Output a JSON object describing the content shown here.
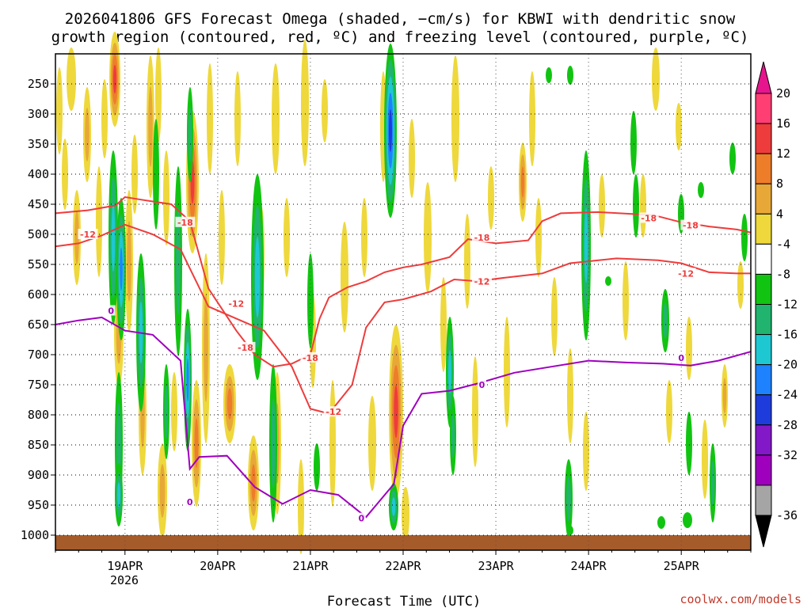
{
  "chart_data": {
    "type": "heatmap",
    "title_line1": "2026041806 GFS Forecast Omega (shaded, −cm/s) for KBWI with dendritic snow",
    "title_line2": "growth region (contoured, red, ºC) and freezing level (contoured, purple, ºC)",
    "xlabel": "Forecast Time (UTC)",
    "ylabel": "Pressure (hPa)",
    "credit": "coolwx.com/models",
    "x_ticks": [
      "19APR",
      "20APR",
      "21APR",
      "22APR",
      "23APR",
      "24APR",
      "25APR"
    ],
    "x_sub_label": "2026",
    "x_range_days": [
      18.25,
      25.75
    ],
    "y_ticks": [
      250,
      300,
      350,
      400,
      450,
      500,
      550,
      600,
      650,
      700,
      750,
      800,
      850,
      900,
      950,
      1000
    ],
    "y_range": [
      200,
      1000
    ],
    "colorbar": {
      "labels": [
        "20",
        "16",
        "12",
        "8",
        "4",
        "-4",
        "-8",
        "-12",
        "-16",
        "-20",
        "-24",
        "-28",
        "-32",
        "-36"
      ],
      "bins": [
        {
          "color": "#ff3e74"
        },
        {
          "color": "#ee3c3c"
        },
        {
          "color": "#ee7d2a"
        },
        {
          "color": "#e8a838"
        },
        {
          "color": "#eed83c"
        },
        {
          "color": "#ffffff"
        },
        {
          "color": "#12c412"
        },
        {
          "color": "#20b46e"
        },
        {
          "color": "#1ec8d2"
        },
        {
          "color": "#1e82ff"
        },
        {
          "color": "#1e3cdc"
        },
        {
          "color": "#8218c8"
        },
        {
          "color": "#9e00be"
        },
        {
          "color": "#a5a5a5"
        }
      ],
      "top_arrow": "#e7158d",
      "bottom_arrow": "#000000"
    },
    "contours": {
      "dgz_upper": {
        "label": "-18",
        "color": "#ee3c3c",
        "label_positions": [
          [
            19.65,
            480
          ],
          [
            20.3,
            688
          ],
          [
            21.0,
            705
          ],
          [
            22.85,
            505
          ],
          [
            24.65,
            473
          ],
          [
            25.1,
            485
          ]
        ],
        "points": [
          [
            18.25,
            465
          ],
          [
            18.6,
            460
          ],
          [
            18.9,
            452
          ],
          [
            19.0,
            438
          ],
          [
            19.2,
            443
          ],
          [
            19.5,
            450
          ],
          [
            19.7,
            478
          ],
          [
            19.9,
            590
          ],
          [
            20.2,
            660
          ],
          [
            20.4,
            700
          ],
          [
            20.6,
            720
          ],
          [
            20.8,
            715
          ],
          [
            21.0,
            700
          ],
          [
            21.1,
            640
          ],
          [
            21.2,
            605
          ],
          [
            21.4,
            588
          ],
          [
            21.6,
            578
          ],
          [
            21.8,
            563
          ],
          [
            22.0,
            555
          ],
          [
            22.2,
            550
          ],
          [
            22.5,
            538
          ],
          [
            22.7,
            508
          ],
          [
            23.0,
            515
          ],
          [
            23.35,
            510
          ],
          [
            23.5,
            478
          ],
          [
            23.7,
            465
          ],
          [
            24.1,
            463
          ],
          [
            24.7,
            468
          ],
          [
            25.0,
            480
          ],
          [
            25.3,
            487
          ],
          [
            25.6,
            492
          ],
          [
            25.75,
            497
          ]
        ]
      },
      "dgz_lower": {
        "label": "-12",
        "color": "#ee3c3c",
        "label_positions": [
          [
            18.6,
            500
          ],
          [
            20.2,
            615
          ],
          [
            21.25,
            795
          ],
          [
            22.85,
            578
          ],
          [
            25.05,
            565
          ]
        ],
        "points": [
          [
            18.25,
            520
          ],
          [
            18.5,
            515
          ],
          [
            18.75,
            502
          ],
          [
            19.0,
            484
          ],
          [
            19.3,
            500
          ],
          [
            19.6,
            525
          ],
          [
            19.9,
            620
          ],
          [
            20.2,
            640
          ],
          [
            20.5,
            660
          ],
          [
            20.8,
            720
          ],
          [
            21.0,
            790
          ],
          [
            21.2,
            798
          ],
          [
            21.45,
            750
          ],
          [
            21.6,
            655
          ],
          [
            21.8,
            613
          ],
          [
            22.0,
            608
          ],
          [
            22.3,
            595
          ],
          [
            22.55,
            575
          ],
          [
            22.8,
            578
          ],
          [
            23.1,
            572
          ],
          [
            23.5,
            565
          ],
          [
            23.8,
            548
          ],
          [
            24.3,
            540
          ],
          [
            24.75,
            543
          ],
          [
            25.0,
            548
          ],
          [
            25.3,
            563
          ],
          [
            25.6,
            565
          ],
          [
            25.75,
            565
          ]
        ]
      },
      "freezing": {
        "label": "0",
        "color": "#9e00be",
        "label_positions": [
          [
            18.85,
            627
          ],
          [
            19.7,
            945
          ],
          [
            21.55,
            972
          ],
          [
            22.85,
            750
          ],
          [
            25.0,
            705
          ]
        ],
        "points": [
          [
            18.25,
            650
          ],
          [
            18.5,
            643
          ],
          [
            18.75,
            638
          ],
          [
            19.0,
            660
          ],
          [
            19.3,
            667
          ],
          [
            19.6,
            710
          ],
          [
            19.7,
            890
          ],
          [
            19.8,
            870
          ],
          [
            20.1,
            868
          ],
          [
            20.4,
            920
          ],
          [
            20.7,
            948
          ],
          [
            21.0,
            925
          ],
          [
            21.3,
            933
          ],
          [
            21.6,
            970
          ],
          [
            21.9,
            915
          ],
          [
            22.0,
            818
          ],
          [
            22.2,
            765
          ],
          [
            22.5,
            760
          ],
          [
            22.8,
            748
          ],
          [
            23.2,
            730
          ],
          [
            23.6,
            720
          ],
          [
            24.0,
            710
          ],
          [
            24.4,
            713
          ],
          [
            24.8,
            715
          ],
          [
            25.1,
            718
          ],
          [
            25.4,
            710
          ],
          [
            25.75,
            695
          ]
        ]
      }
    }
  }
}
